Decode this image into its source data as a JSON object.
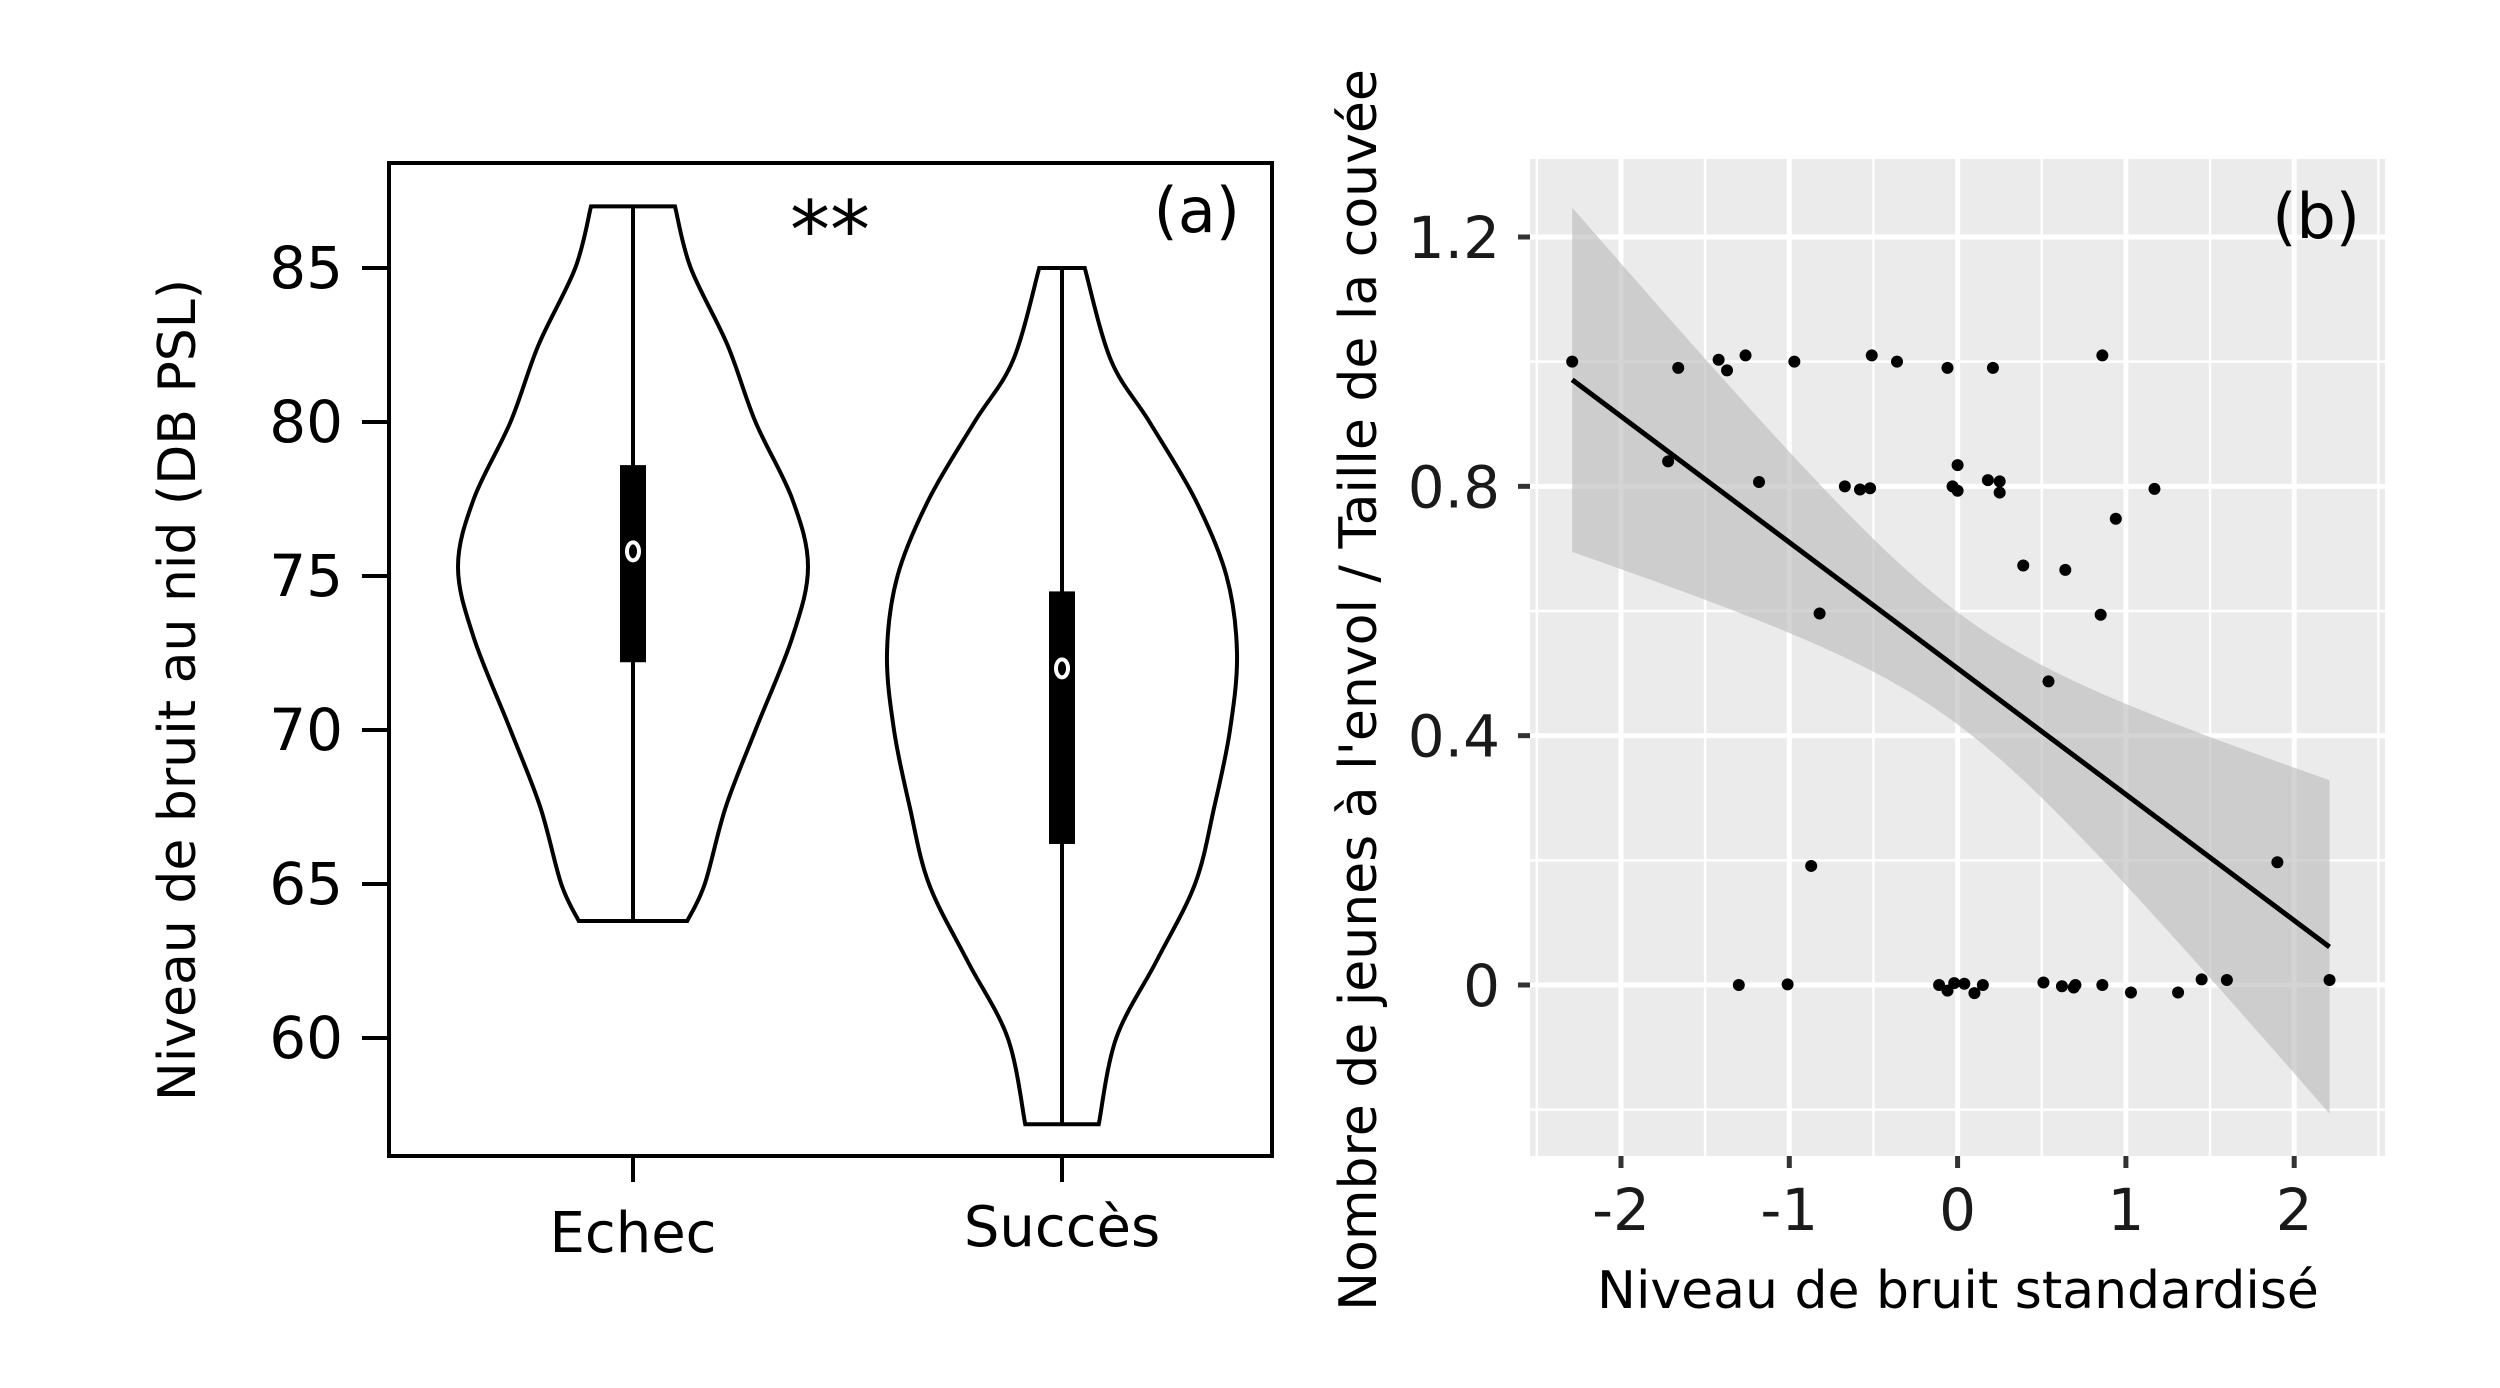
{
  "chart_data": [
    {
      "type": "violin",
      "panel_label": "(a)",
      "annotation": "**",
      "ylabel": "Niveau de bruit au nid (DB PSL)",
      "xlabel": "",
      "categories": [
        "Echec",
        "Succès"
      ],
      "yticks": [
        60,
        65,
        70,
        75,
        80,
        85
      ],
      "ylim": [
        55.7,
        88.5
      ],
      "violins": [
        {
          "name": "Echec",
          "min": 63.8,
          "max": 87.0,
          "q1": 72.2,
          "q3": 78.6,
          "median": 75.8,
          "density_profile": [
            [
              63.8,
              0.31
            ],
            [
              65,
              0.41
            ],
            [
              67.5,
              0.53
            ],
            [
              70,
              0.7
            ],
            [
              73,
              0.91
            ],
            [
              75.3,
              1.0
            ],
            [
              77.5,
              0.91
            ],
            [
              80,
              0.7
            ],
            [
              82.5,
              0.54
            ],
            [
              85,
              0.33
            ],
            [
              87,
              0.24
            ]
          ]
        },
        {
          "name": "Succès",
          "min": 57.2,
          "max": 85.0,
          "q1": 66.3,
          "q3": 74.5,
          "median": 72.0,
          "density_profile": [
            [
              57.2,
              0.21
            ],
            [
              60,
              0.31
            ],
            [
              62.5,
              0.54
            ],
            [
              65,
              0.76
            ],
            [
              67.5,
              0.87
            ],
            [
              70,
              0.96
            ],
            [
              72.5,
              1.0
            ],
            [
              75,
              0.94
            ],
            [
              77.5,
              0.76
            ],
            [
              80,
              0.5
            ],
            [
              82,
              0.28
            ],
            [
              85,
              0.13
            ]
          ]
        }
      ]
    },
    {
      "type": "scatter",
      "panel_label": "(b)",
      "xlabel": "Niveau de bruit standardisé",
      "ylabel": "Nombre de jeunes à l'envol / Taille de la couvée",
      "xticks": [
        "-2",
        "-1",
        "0",
        "1",
        "2"
      ],
      "xtick_values": [
        -2,
        -1,
        0,
        1,
        2
      ],
      "yticks": [
        "0",
        "0.4",
        "0.8",
        "1.2"
      ],
      "ytick_values": [
        0,
        0.4,
        0.8,
        1.2
      ],
      "xlim": [
        -2.55,
        2.55
      ],
      "ylim": [
        -0.27,
        1.39
      ],
      "grid": true,
      "points": [
        [
          -2.29,
          1.0
        ],
        [
          -1.66,
          0.99
        ],
        [
          -1.42,
          1.003
        ],
        [
          -1.37,
          0.986
        ],
        [
          -1.26,
          1.01
        ],
        [
          -0.97,
          1.0
        ],
        [
          -0.51,
          1.01
        ],
        [
          -0.36,
          1.0
        ],
        [
          -0.06,
          0.99
        ],
        [
          0.21,
          0.99
        ],
        [
          0.86,
          1.01
        ],
        [
          -1.72,
          0.84
        ],
        [
          -1.18,
          0.807
        ],
        [
          -0.67,
          0.8
        ],
        [
          -0.58,
          0.795
        ],
        [
          -0.52,
          0.797
        ],
        [
          -0.03,
          0.8
        ],
        [
          0.0,
          0.834
        ],
        [
          0.0,
          0.793
        ],
        [
          0.18,
          0.81
        ],
        [
          0.25,
          0.808
        ],
        [
          0.25,
          0.79
        ],
        [
          1.17,
          0.796
        ],
        [
          0.94,
          0.748
        ],
        [
          0.39,
          0.673
        ],
        [
          0.64,
          0.666
        ],
        [
          0.85,
          0.594
        ],
        [
          -0.82,
          0.596
        ],
        [
          0.54,
          0.487
        ],
        [
          -0.87,
          0.191
        ],
        [
          1.9,
          0.197
        ],
        [
          -1.3,
          0.0
        ],
        [
          -1.01,
          0.001
        ],
        [
          -0.11,
          0.0
        ],
        [
          -0.06,
          -0.009
        ],
        [
          -0.02,
          0.003
        ],
        [
          0.04,
          0.002
        ],
        [
          0.1,
          -0.013
        ],
        [
          0.15,
          0.0
        ],
        [
          0.51,
          0.004
        ],
        [
          0.62,
          -0.002
        ],
        [
          0.69,
          -0.004
        ],
        [
          0.7,
          0.0
        ],
        [
          0.86,
          0.0
        ],
        [
          1.03,
          -0.012
        ],
        [
          1.31,
          -0.012
        ],
        [
          1.45,
          0.009
        ],
        [
          1.6,
          0.008
        ],
        [
          2.21,
          0.008
        ]
      ],
      "fit_line": {
        "x": [
          -2.29,
          2.21
        ],
        "y": [
          0.971,
          0.061
        ]
      },
      "confidence_band": {
        "x_range": [
          -2.29,
          2.21
        ],
        "center_x": 0.0,
        "center_halfwidth": 0.09,
        "halfwidth_slope_sq": 0.013
      },
      "colors": {
        "background": "#EBEBEB",
        "grid": "#FFFFFF",
        "band": "#BDBDBD",
        "points": "#000000"
      }
    }
  ]
}
